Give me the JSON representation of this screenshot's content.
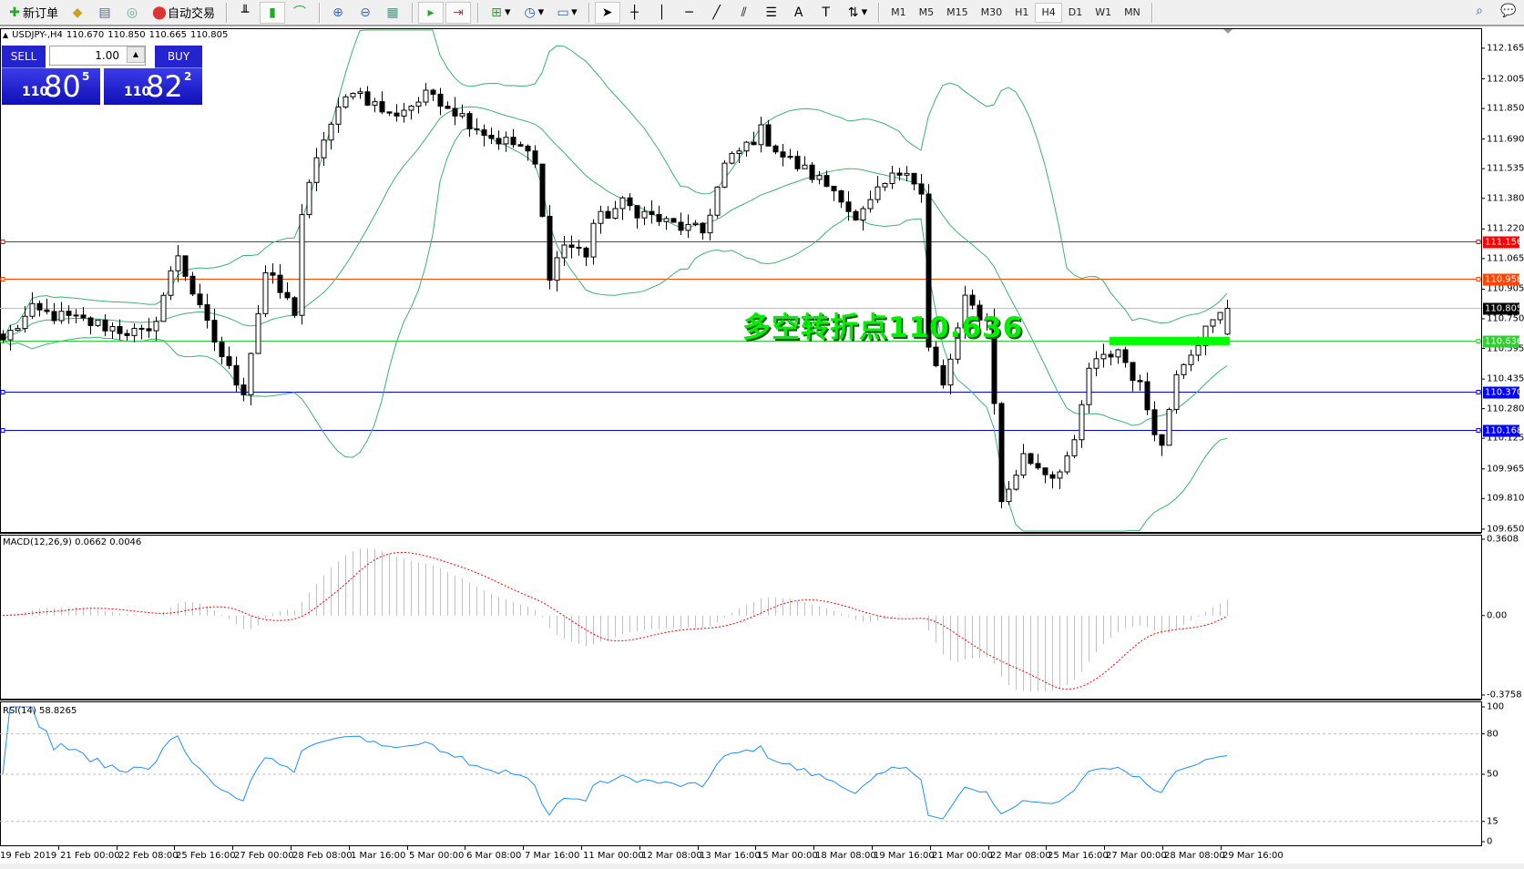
{
  "toolbar": {
    "new_order": "新订单",
    "auto_trading": "自动交易",
    "timeframes": [
      "M1",
      "M5",
      "M15",
      "M30",
      "H1",
      "H4",
      "D1",
      "W1",
      "MN"
    ],
    "active_timeframe": "H4"
  },
  "chart": {
    "symbol": "USDJPY-,H4",
    "open": "110.670",
    "high": "110.850",
    "low": "110.665",
    "close": "110.805"
  },
  "order_panel": {
    "sell_label": "SELL",
    "buy_label": "BUY",
    "lot": "1.00",
    "sell_price": {
      "prefix": "110",
      "main": "80",
      "sup": "5"
    },
    "buy_price": {
      "prefix": "110",
      "main": "82",
      "sup": "2"
    }
  },
  "annotation": "多空转折点110.636",
  "price_axis": [
    "112.165",
    "112.005",
    "111.850",
    "111.690",
    "111.535",
    "111.380",
    "111.220",
    "111.065",
    "110.905",
    "110.750",
    "110.595",
    "110.435",
    "110.280",
    "110.125",
    "109.965",
    "109.810",
    "109.650"
  ],
  "horizontal_lines": [
    {
      "value": "111.156",
      "color": "#ff0000",
      "tag_color": "#ff0000"
    },
    {
      "value": "110.958",
      "color": "#ff4500",
      "tag_color": "#ff4500"
    },
    {
      "value": "110.805",
      "color": "#c0c0c0",
      "tag_color": "#000000"
    },
    {
      "value": "110.636",
      "color": "#32cd32",
      "tag_color": "#32cd32"
    },
    {
      "value": "110.370",
      "color": "#0000ff",
      "tag_color": "#0000ff"
    },
    {
      "value": "110.168",
      "color": "#0000ff",
      "tag_color": "#0000ff"
    }
  ],
  "pivot_marker": {
    "value": "110.636",
    "color": "#00ff00"
  },
  "macd": {
    "label": "MACD(12,26,9) 0.0662 0.0046",
    "axis": [
      "0.3608",
      "0.00",
      "-0.3758"
    ],
    "signal_color": "#ff0000",
    "histogram_color": "#c0c0c0"
  },
  "rsi": {
    "label": "RSI(14) 58.8265",
    "axis": [
      "100",
      "80",
      "50",
      "15",
      "0"
    ],
    "color": "#1e90ff"
  },
  "bands_color": "#3cb371",
  "time_axis": [
    "19 Feb 2019",
    "21 Feb 00:00",
    "22 Feb 08:00",
    "25 Feb 16:00",
    "27 Feb 00:00",
    "28 Feb 08:00",
    "1 Mar 16:00",
    "5 Mar 00:00",
    "6 Mar 08:00",
    "7 Mar 16:00",
    "11 Mar 00:00",
    "12 Mar 08:00",
    "13 Mar 16:00",
    "15 Mar 00:00",
    "18 Mar 08:00",
    "19 Mar 16:00",
    "21 Mar 00:00",
    "22 Mar 08:00",
    "25 Mar 16:00",
    "27 Mar 00:00",
    "28 Mar 08:00",
    "29 Mar 16:00"
  ],
  "price_path": [
    [
      0,
      110.64
    ],
    [
      4,
      110.79
    ],
    [
      13,
      110.72
    ],
    [
      20,
      110.66
    ],
    [
      24,
      111.09
    ],
    [
      27,
      110.79
    ],
    [
      31,
      110.48
    ],
    [
      33,
      110.38
    ],
    [
      36,
      110.99
    ],
    [
      40,
      110.79
    ],
    [
      41,
      111.3
    ],
    [
      44,
      111.7
    ],
    [
      48,
      111.96
    ],
    [
      53,
      111.81
    ],
    [
      59,
      111.93
    ],
    [
      63,
      111.81
    ],
    [
      67,
      111.7
    ],
    [
      71,
      111.65
    ],
    [
      73,
      111.55
    ],
    [
      75,
      110.99
    ],
    [
      77,
      111.14
    ],
    [
      80,
      111.09
    ],
    [
      81,
      111.25
    ],
    [
      85,
      111.35
    ],
    [
      91,
      111.25
    ],
    [
      96,
      111.2
    ],
    [
      99,
      111.55
    ],
    [
      104,
      111.73
    ],
    [
      107,
      111.6
    ],
    [
      111,
      111.5
    ],
    [
      115,
      111.4
    ],
    [
      117,
      111.25
    ],
    [
      121,
      111.45
    ],
    [
      124,
      111.55
    ],
    [
      126,
      111.4
    ],
    [
      127,
      110.59
    ],
    [
      129,
      110.39
    ],
    [
      132,
      110.84
    ],
    [
      135,
      110.74
    ],
    [
      136,
      110.33
    ],
    [
      137,
      109.78
    ],
    [
      140,
      110.03
    ],
    [
      144,
      109.93
    ],
    [
      147,
      110.08
    ],
    [
      149,
      110.49
    ],
    [
      153,
      110.59
    ],
    [
      156,
      110.39
    ],
    [
      159,
      110.08
    ],
    [
      161,
      110.49
    ],
    [
      165,
      110.69
    ],
    [
      168,
      110.805
    ]
  ]
}
